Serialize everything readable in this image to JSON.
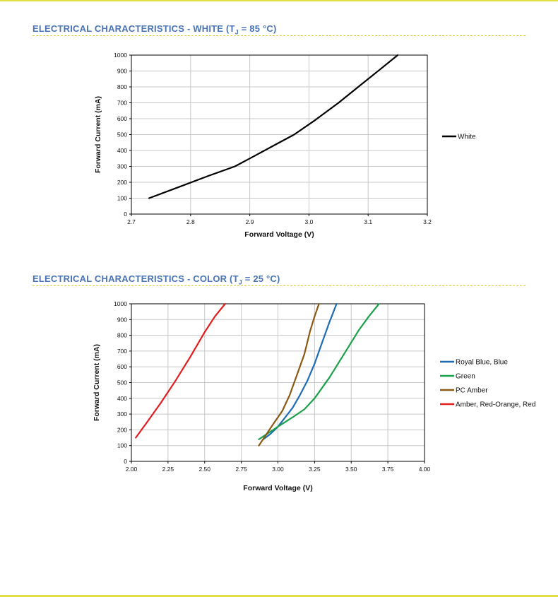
{
  "header": {
    "white_title_pre": "ELECTRICAL CHARACTERISTICS - WHITE (T",
    "white_title_sub": "J",
    "white_title_post": " = 85 °C)",
    "color_title_pre": "ELECTRICAL CHARACTERISTICS - COLOR (T",
    "color_title_sub": "J",
    "color_title_post": " = 25 °C)"
  },
  "colors": {
    "accent": "#4a74b5",
    "rule": "#e2d13a",
    "edge": "#e2df46",
    "grid": "#c8c8c8"
  },
  "chart_data": [
    {
      "type": "line",
      "title": "ELECTRICAL CHARACTERISTICS - WHITE (TJ = 85 °C)",
      "xlabel": "Forward Voltage (V)",
      "ylabel": "Forward Current (mA)",
      "xlim": [
        2.7,
        3.2
      ],
      "ylim": [
        0,
        1000
      ],
      "xticks": [
        "2.7",
        "2.8",
        "2.9",
        "3.0",
        "3.1",
        "3.2"
      ],
      "yticks": [
        "0",
        "100",
        "200",
        "300",
        "400",
        "500",
        "600",
        "700",
        "800",
        "900",
        "1000"
      ],
      "grid": true,
      "legend": "right",
      "series": [
        {
          "name": "White",
          "color": "#000000",
          "x": [
            2.73,
            2.78,
            2.83,
            2.875,
            2.9,
            2.935,
            2.975,
            3.01,
            3.05,
            3.09,
            3.12,
            3.15
          ],
          "y": [
            100,
            170,
            240,
            300,
            350,
            420,
            500,
            590,
            700,
            820,
            910,
            1000
          ]
        }
      ]
    },
    {
      "type": "line",
      "title": "ELECTRICAL CHARACTERISTICS - COLOR (TJ = 25 °C)",
      "xlabel": "Forward Voltage (V)",
      "ylabel": "Forward Current (mA)",
      "xlim": [
        2.0,
        4.0
      ],
      "ylim": [
        0,
        1000
      ],
      "xticks": [
        "2.00",
        "2.25",
        "2.50",
        "2.75",
        "3.00",
        "3.25",
        "3.50",
        "3.75",
        "4.00"
      ],
      "yticks": [
        "0",
        "100",
        "200",
        "300",
        "400",
        "500",
        "600",
        "700",
        "800",
        "900",
        "1000"
      ],
      "grid": true,
      "legend": "right",
      "series": [
        {
          "name": "Royal Blue, Blue",
          "color": "#1f6cb5",
          "x": [
            2.9,
            2.95,
            3.0,
            3.05,
            3.1,
            3.15,
            3.2,
            3.25,
            3.3,
            3.35,
            3.4
          ],
          "y": [
            140,
            175,
            220,
            280,
            340,
            420,
            510,
            620,
            750,
            880,
            1000
          ]
        },
        {
          "name": "Green",
          "color": "#1aa14a",
          "x": [
            2.87,
            3.0,
            3.1,
            3.18,
            3.25,
            3.35,
            3.45,
            3.55,
            3.62,
            3.69
          ],
          "y": [
            140,
            220,
            280,
            330,
            400,
            530,
            680,
            830,
            920,
            1000
          ]
        },
        {
          "name": "PC Amber",
          "color": "#8a5a14",
          "x": [
            2.87,
            2.92,
            2.97,
            3.03,
            3.08,
            3.13,
            3.18,
            3.22,
            3.25,
            3.28
          ],
          "y": [
            100,
            170,
            240,
            320,
            420,
            550,
            680,
            830,
            920,
            1000
          ]
        },
        {
          "name": "Amber, Red-Orange, Red",
          "color": "#e31d1d",
          "x": [
            2.03,
            2.1,
            2.2,
            2.3,
            2.4,
            2.5,
            2.57,
            2.64
          ],
          "y": [
            150,
            240,
            370,
            510,
            660,
            820,
            920,
            1000
          ]
        }
      ]
    }
  ]
}
